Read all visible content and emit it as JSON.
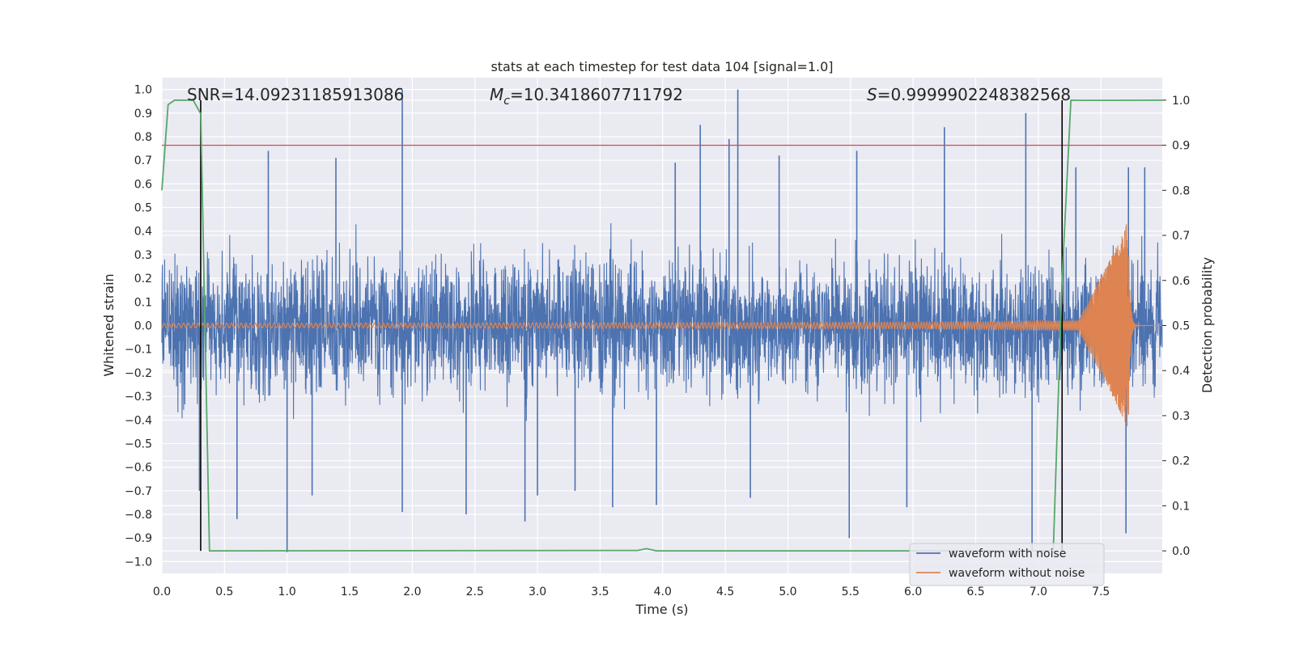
{
  "chart_data": {
    "type": "line",
    "title": "stats at each timestep for test data 104 [signal=1.0]",
    "xlabel": "Time (s)",
    "ylabel_left": "Whitened strain",
    "ylabel_right": "Detection probability",
    "xlim": [
      0.0,
      7.99
    ],
    "ylim_left": [
      -1.05,
      1.05
    ],
    "ylim_right": [
      -0.05,
      1.05
    ],
    "x_ticks": [
      "0.0",
      "0.5",
      "1.0",
      "1.5",
      "2.0",
      "2.5",
      "3.0",
      "3.5",
      "4.0",
      "4.5",
      "5.0",
      "5.5",
      "6.0",
      "6.5",
      "7.0",
      "7.5"
    ],
    "y_left_ticks": [
      "1.0",
      "0.9",
      "0.8",
      "0.7",
      "0.6",
      "0.5",
      "0.4",
      "0.3",
      "0.2",
      "0.1",
      "0.0",
      "−0.1",
      "−0.2",
      "−0.3",
      "−0.4",
      "−0.5",
      "−0.6",
      "−0.7",
      "−0.8",
      "−0.9",
      "−1.0"
    ],
    "y_right_ticks": [
      "1.0",
      "0.9",
      "0.8",
      "0.7",
      "0.6",
      "0.5",
      "0.4",
      "0.3",
      "0.2",
      "0.1",
      "0.0"
    ],
    "annotations": {
      "snr": "SNR=14.09231185913086",
      "mc_symbol": "M",
      "mc_sub": "c",
      "mc_value": "=10.3418607711792",
      "s_symbol": "S",
      "s_value": "=0.9999902248382568"
    },
    "threshold_right": 0.9,
    "vertical_lines_x": [
      0.31,
      7.19
    ],
    "grid": true,
    "legend_position": "lower-right",
    "series": [
      {
        "name": "waveform with noise",
        "color": "#4c72b0",
        "envelope_base": 0.33,
        "peaks": [
          {
            "x": 0.3,
            "y": -0.7
          },
          {
            "x": 0.85,
            "y": 0.74
          },
          {
            "x": 0.6,
            "y": -0.82
          },
          {
            "x": 1.0,
            "y": -0.96
          },
          {
            "x": 1.2,
            "y": -0.72
          },
          {
            "x": 1.39,
            "y": 0.71
          },
          {
            "x": 1.92,
            "y": 1.0
          },
          {
            "x": 1.92,
            "y": -0.79
          },
          {
            "x": 2.43,
            "y": -0.8
          },
          {
            "x": 2.9,
            "y": -0.83
          },
          {
            "x": 3.0,
            "y": -0.72
          },
          {
            "x": 3.3,
            "y": -0.7
          },
          {
            "x": 3.6,
            "y": -0.77
          },
          {
            "x": 3.95,
            "y": -0.76
          },
          {
            "x": 4.1,
            "y": 0.69
          },
          {
            "x": 4.3,
            "y": 0.85
          },
          {
            "x": 4.53,
            "y": 0.79
          },
          {
            "x": 4.6,
            "y": 1.0
          },
          {
            "x": 4.7,
            "y": -0.73
          },
          {
            "x": 4.93,
            "y": 0.72
          },
          {
            "x": 5.49,
            "y": -0.9
          },
          {
            "x": 5.55,
            "y": 0.74
          },
          {
            "x": 5.95,
            "y": -0.77
          },
          {
            "x": 6.25,
            "y": 0.84
          },
          {
            "x": 6.9,
            "y": 0.9
          },
          {
            "x": 6.95,
            "y": -0.95
          },
          {
            "x": 7.3,
            "y": 0.67
          },
          {
            "x": 7.7,
            "y": -0.88
          },
          {
            "x": 7.72,
            "y": 0.67
          },
          {
            "x": 7.85,
            "y": 0.67
          }
        ]
      },
      {
        "name": "waveform without noise",
        "color": "#dd8452",
        "chirp": {
          "t_start": 0.0,
          "t_merge": 7.72,
          "t_end": 7.99,
          "amp_start": 0.01,
          "amp_peak": 0.43
        }
      },
      {
        "name": "detection probability",
        "color": "#55a868",
        "x": [
          0.0,
          0.05,
          0.1,
          0.25,
          0.31,
          0.38,
          3.8,
          3.87,
          3.95,
          7.05,
          7.12,
          7.19,
          7.26,
          7.35,
          7.99
        ],
        "y": [
          0.8,
          0.99,
          1.0,
          1.0,
          0.97,
          0.0,
          0.001,
          0.005,
          0.0,
          0.0,
          0.002,
          0.6,
          1.0,
          0.9995,
          1.0
        ]
      }
    ]
  }
}
